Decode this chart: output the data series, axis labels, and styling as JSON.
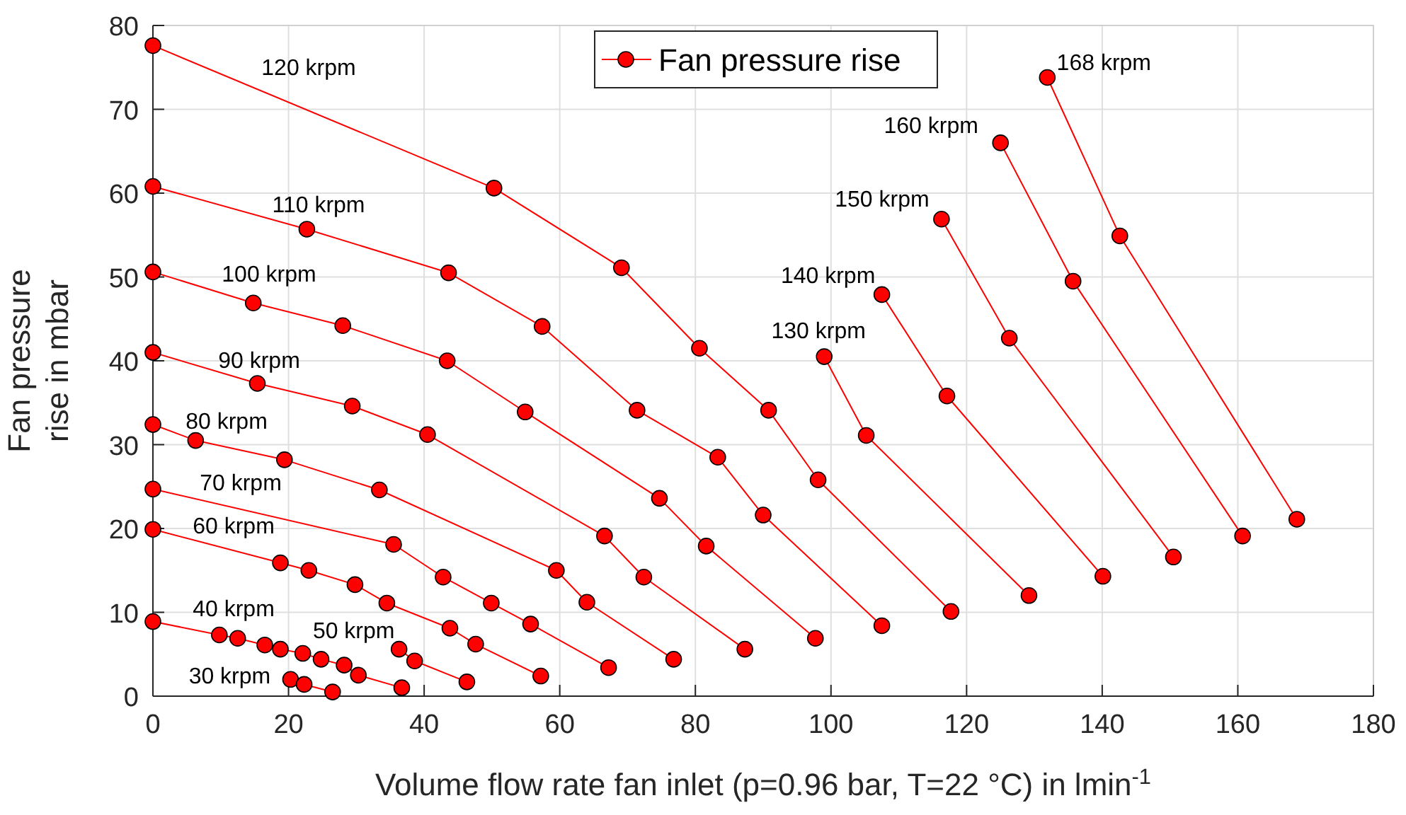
{
  "chart_data": {
    "type": "line",
    "xlabel": "Volume flow rate fan inlet (p=0.96 bar, T=22 °C) in lmin$^{-1}$",
    "ylabel": "Fan pressure rise in mbar",
    "series": [
      {
        "name": "Fan pressure rise",
        "color": "#ff0000",
        "x": [
          20.3,
          22.3,
          26.5,
          null,
          0,
          9.8,
          12.5,
          16.5,
          18.8,
          22.1,
          24.8,
          28.2,
          30.3,
          36.7,
          null,
          36.3,
          38.6,
          46.3,
          null,
          0,
          18.8,
          23,
          29.8,
          34.5,
          43.8,
          47.6,
          57.2,
          null,
          0,
          35.5,
          42.8,
          49.9,
          55.7,
          67.2,
          null,
          0,
          6.3,
          19.4,
          33.4,
          59.5,
          64,
          76.8,
          null,
          0,
          15.4,
          29.4,
          40.5,
          66.6,
          72.4,
          87.3,
          null,
          0,
          14.8,
          28,
          43.4,
          54.9,
          74.7,
          81.6,
          97.7,
          null,
          0,
          22.7,
          43.6,
          57.4,
          71.4,
          83.3,
          90,
          107.5,
          null,
          0,
          50.3,
          69.1,
          80.6,
          90.8,
          98.1,
          117.7,
          null,
          99,
          105.2,
          129.2,
          null,
          107.5,
          117.1,
          140.1,
          null,
          116.3,
          126.3,
          150.5,
          null,
          125,
          135.7,
          160.7,
          null,
          131.9,
          142.6,
          168.7
        ],
        "values": [
          2.0,
          1.4,
          0.5,
          null,
          8.9,
          7.3,
          6.9,
          6.1,
          5.6,
          5.1,
          4.4,
          3.7,
          2.5,
          1.0,
          null,
          5.6,
          4.2,
          1.7,
          null,
          19.9,
          15.9,
          15.0,
          13.3,
          11.1,
          8.1,
          6.2,
          2.4,
          null,
          24.7,
          18.1,
          14.2,
          11.1,
          8.6,
          3.4,
          null,
          32.4,
          30.5,
          28.2,
          24.6,
          15.0,
          11.2,
          4.4,
          null,
          41.0,
          37.3,
          34.6,
          31.2,
          19.1,
          14.2,
          5.6,
          null,
          50.6,
          46.9,
          44.2,
          40.0,
          33.9,
          23.6,
          17.9,
          6.9,
          null,
          60.8,
          55.7,
          50.5,
          44.1,
          34.1,
          28.5,
          21.6,
          8.4,
          null,
          77.6,
          60.6,
          51.1,
          41.5,
          34.1,
          25.8,
          10.1,
          null,
          40.5,
          31.1,
          12.0,
          null,
          47.9,
          35.8,
          14.3,
          null,
          56.9,
          42.7,
          16.6,
          null,
          66.0,
          49.5,
          19.1,
          null,
          73.8,
          54.9,
          21.1
        ]
      }
    ],
    "annotations": [
      "30 krpm",
      "40 krpm",
      "50 krpm",
      "60 krpm",
      "70 krpm",
      "80 krpm",
      "90 krpm",
      "100 krpm",
      "110 krpm",
      "120 krpm",
      "130 krpm",
      "140 krpm",
      "150 krpm",
      "160 krpm",
      "168 krpm"
    ],
    "xlim": [
      0,
      180
    ],
    "xticks": [
      0,
      20,
      40,
      60,
      80,
      100,
      120,
      140,
      160,
      180
    ],
    "ylim": [
      0,
      80
    ],
    "yticks": [
      0,
      10,
      20,
      30,
      40,
      50,
      60,
      70,
      80
    ],
    "grid": true,
    "legend": "top",
    "marker": "circle",
    "line_style": "solid"
  }
}
